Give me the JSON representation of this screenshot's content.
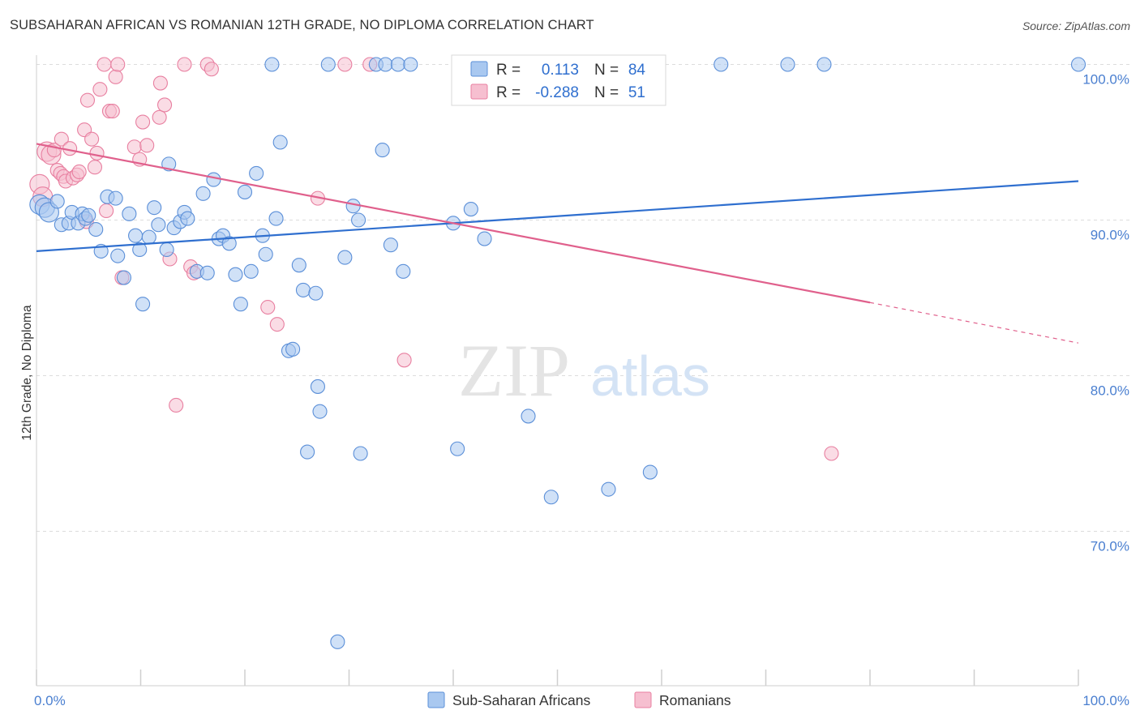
{
  "title": "SUBSAHARAN AFRICAN VS ROMANIAN 12TH GRADE, NO DIPLOMA CORRELATION CHART",
  "source": "Source: ZipAtlas.com",
  "watermark": {
    "zip": "ZIP",
    "atlas": "atlas"
  },
  "colors": {
    "blue_fill": "#a9c8f0",
    "blue_stroke": "#5b8fd8",
    "blue_line": "#2f6fcf",
    "pink_fill": "#f6bfd0",
    "pink_stroke": "#e87fa0",
    "pink_line": "#e0608c",
    "tick_label": "#4a7fd0",
    "grid": "#dcdcdc"
  },
  "legend": {
    "r_label": "R =",
    "n_label": "N =",
    "series": [
      {
        "r": "0.113",
        "n": "84"
      },
      {
        "r": "-0.288",
        "n": "51"
      }
    ]
  },
  "chart_data": {
    "type": "scatter",
    "title": "SUBSAHARAN AFRICAN VS ROMANIAN 12TH GRADE, NO DIPLOMA CORRELATION CHART",
    "xlabel": "",
    "ylabel": "12th Grade, No Diploma",
    "xlim": [
      0,
      100
    ],
    "ylim": [
      62,
      101.5
    ],
    "x_tick_labels": [
      "0.0%",
      "100.0%"
    ],
    "y_ticks": [
      {
        "value": 100,
        "label": "100.0%"
      },
      {
        "value": 90,
        "label": "90.0%"
      },
      {
        "value": 80,
        "label": "80.0%"
      },
      {
        "value": 70,
        "label": "70.0%"
      }
    ],
    "grid": true,
    "legend_position": "bottom",
    "series": [
      {
        "name": "Sub-Saharan Africans",
        "color": "#5b8fd8",
        "trend": {
          "x0": 0,
          "y0": 88.0,
          "x1": 100,
          "y1": 92.5
        },
        "points": [
          [
            0.3,
            91.0
          ],
          [
            0.8,
            90.8
          ],
          [
            1.2,
            90.5
          ],
          [
            2.0,
            91.2
          ],
          [
            2.4,
            89.7
          ],
          [
            3.1,
            89.8
          ],
          [
            3.4,
            90.5
          ],
          [
            4.0,
            89.8
          ],
          [
            4.4,
            90.4
          ],
          [
            4.7,
            90.1
          ],
          [
            5.0,
            90.3
          ],
          [
            5.7,
            89.4
          ],
          [
            6.2,
            88.0
          ],
          [
            6.8,
            91.5
          ],
          [
            7.6,
            91.4
          ],
          [
            7.8,
            87.7
          ],
          [
            8.4,
            86.3
          ],
          [
            8.9,
            90.4
          ],
          [
            9.5,
            89.0
          ],
          [
            9.9,
            88.1
          ],
          [
            10.2,
            84.6
          ],
          [
            10.8,
            88.9
          ],
          [
            11.3,
            90.8
          ],
          [
            11.7,
            89.7
          ],
          [
            12.5,
            88.1
          ],
          [
            12.7,
            93.6
          ],
          [
            13.2,
            89.5
          ],
          [
            13.8,
            89.9
          ],
          [
            14.2,
            90.5
          ],
          [
            14.5,
            90.1
          ],
          [
            15.4,
            86.7
          ],
          [
            16.0,
            91.7
          ],
          [
            16.4,
            86.6
          ],
          [
            17.0,
            92.6
          ],
          [
            17.5,
            88.8
          ],
          [
            17.9,
            89.0
          ],
          [
            18.5,
            88.5
          ],
          [
            19.1,
            86.5
          ],
          [
            19.6,
            84.6
          ],
          [
            20.0,
            91.8
          ],
          [
            20.6,
            86.7
          ],
          [
            21.1,
            93.0
          ],
          [
            21.7,
            89.0
          ],
          [
            22.0,
            87.8
          ],
          [
            22.6,
            100.0
          ],
          [
            23.0,
            90.1
          ],
          [
            23.4,
            95.0
          ],
          [
            24.2,
            81.6
          ],
          [
            24.6,
            81.7
          ],
          [
            25.2,
            87.1
          ],
          [
            25.6,
            85.5
          ],
          [
            26.0,
            75.1
          ],
          [
            26.8,
            85.3
          ],
          [
            27.0,
            79.3
          ],
          [
            27.2,
            77.7
          ],
          [
            28.0,
            100.0
          ],
          [
            28.9,
            62.9
          ],
          [
            29.6,
            87.6
          ],
          [
            30.4,
            90.9
          ],
          [
            30.9,
            90.0
          ],
          [
            31.1,
            75.0
          ],
          [
            32.6,
            100.0
          ],
          [
            33.2,
            94.5
          ],
          [
            33.5,
            100.0
          ],
          [
            34.0,
            88.4
          ],
          [
            34.7,
            100.0
          ],
          [
            35.2,
            86.7
          ],
          [
            35.9,
            100.0
          ],
          [
            40.0,
            89.8
          ],
          [
            40.4,
            75.3
          ],
          [
            41.7,
            90.7
          ],
          [
            43.0,
            88.8
          ],
          [
            46.5,
            100.0
          ],
          [
            47.2,
            77.4
          ],
          [
            49.4,
            72.2
          ],
          [
            54.9,
            72.7
          ],
          [
            58.9,
            73.8
          ],
          [
            65.7,
            100.0
          ],
          [
            72.1,
            100.0
          ],
          [
            75.6,
            100.0
          ],
          [
            100.0,
            100.0
          ]
        ]
      },
      {
        "name": "Romanians",
        "color": "#e87fa0",
        "trend": {
          "x0": 0,
          "y0": 94.9,
          "x1": 80,
          "y1": 84.7,
          "dash_x1": 100,
          "dash_y1": 82.1
        },
        "points": [
          [
            0.3,
            92.3
          ],
          [
            0.6,
            91.5
          ],
          [
            1.0,
            94.4
          ],
          [
            1.4,
            94.2
          ],
          [
            1.7,
            94.5
          ],
          [
            2.0,
            93.2
          ],
          [
            2.3,
            93.0
          ],
          [
            2.4,
            95.2
          ],
          [
            2.6,
            92.8
          ],
          [
            2.8,
            92.5
          ],
          [
            3.2,
            94.6
          ],
          [
            3.5,
            92.7
          ],
          [
            3.9,
            92.9
          ],
          [
            4.1,
            93.1
          ],
          [
            4.6,
            95.8
          ],
          [
            4.8,
            89.9
          ],
          [
            4.9,
            97.7
          ],
          [
            5.3,
            95.2
          ],
          [
            5.6,
            93.4
          ],
          [
            5.8,
            94.3
          ],
          [
            6.1,
            98.4
          ],
          [
            6.5,
            100.0
          ],
          [
            6.7,
            90.6
          ],
          [
            7.0,
            97.0
          ],
          [
            7.3,
            97.0
          ],
          [
            7.6,
            99.2
          ],
          [
            7.8,
            100.0
          ],
          [
            8.2,
            86.3
          ],
          [
            9.4,
            94.7
          ],
          [
            9.9,
            93.9
          ],
          [
            10.2,
            96.3
          ],
          [
            10.6,
            94.8
          ],
          [
            11.8,
            96.6
          ],
          [
            11.9,
            98.8
          ],
          [
            12.3,
            97.4
          ],
          [
            12.8,
            87.5
          ],
          [
            13.4,
            78.1
          ],
          [
            14.2,
            100.0
          ],
          [
            14.8,
            87.0
          ],
          [
            15.1,
            86.6
          ],
          [
            16.4,
            100.0
          ],
          [
            16.8,
            99.7
          ],
          [
            22.2,
            84.4
          ],
          [
            23.1,
            83.3
          ],
          [
            27.0,
            91.4
          ],
          [
            29.6,
            100.0
          ],
          [
            32.0,
            100.0
          ],
          [
            35.3,
            81.0
          ],
          [
            76.3,
            75.0
          ]
        ]
      }
    ]
  }
}
